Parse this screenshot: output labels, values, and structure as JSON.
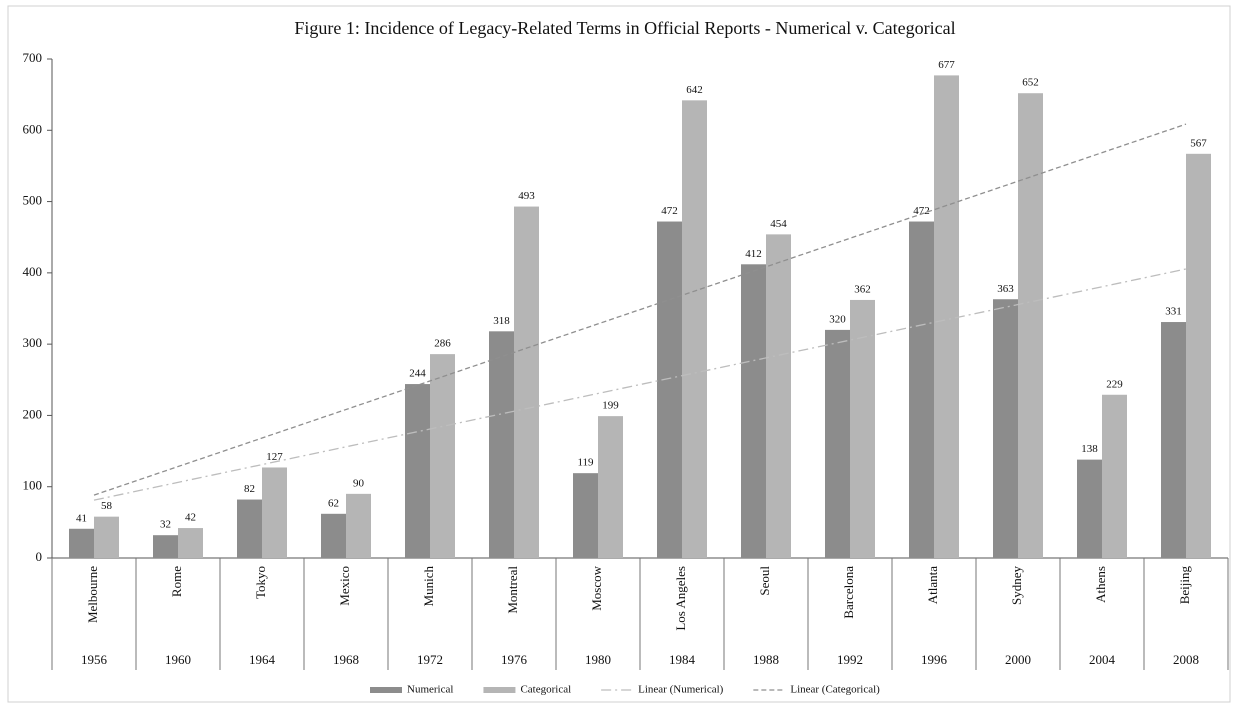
{
  "chart_data": {
    "type": "bar",
    "title": "Figure 1: Incidence of Legacy-Related Terms in Official Reports - Numerical v. Categorical",
    "categories": [
      "Melbourne",
      "Rome",
      "Tokyo",
      "Mexico",
      "Munich",
      "Montreal",
      "Moscow",
      "Los Angeles",
      "Seoul",
      "Barcelona",
      "Atlanta",
      "Sydney",
      "Athens",
      "Beijing"
    ],
    "years": [
      "1956",
      "1960",
      "1964",
      "1968",
      "1972",
      "1976",
      "1980",
      "1984",
      "1988",
      "1992",
      "1996",
      "2000",
      "2004",
      "2008"
    ],
    "series": [
      {
        "name": "Numerical",
        "color": "#8c8c8c",
        "values": [
          41,
          32,
          82,
          62,
          244,
          318,
          119,
          472,
          412,
          320,
          472,
          363,
          138,
          331
        ]
      },
      {
        "name": "Categorical",
        "color": "#b5b5b5",
        "values": [
          58,
          42,
          127,
          90,
          286,
          493,
          199,
          642,
          454,
          362,
          677,
          652,
          229,
          567
        ]
      }
    ],
    "trendlines": [
      {
        "name": "Linear (Numerical)",
        "series": 0,
        "color": "#bdbdbd",
        "dash": "10 4 2 4"
      },
      {
        "name": "Linear (Categorical)",
        "series": 1,
        "color": "#8f8f8f",
        "dash": "5 3"
      }
    ],
    "ylim": [
      0,
      700
    ],
    "yticks": [
      0,
      100,
      200,
      300,
      400,
      500,
      600,
      700
    ],
    "legend": "bottom"
  }
}
